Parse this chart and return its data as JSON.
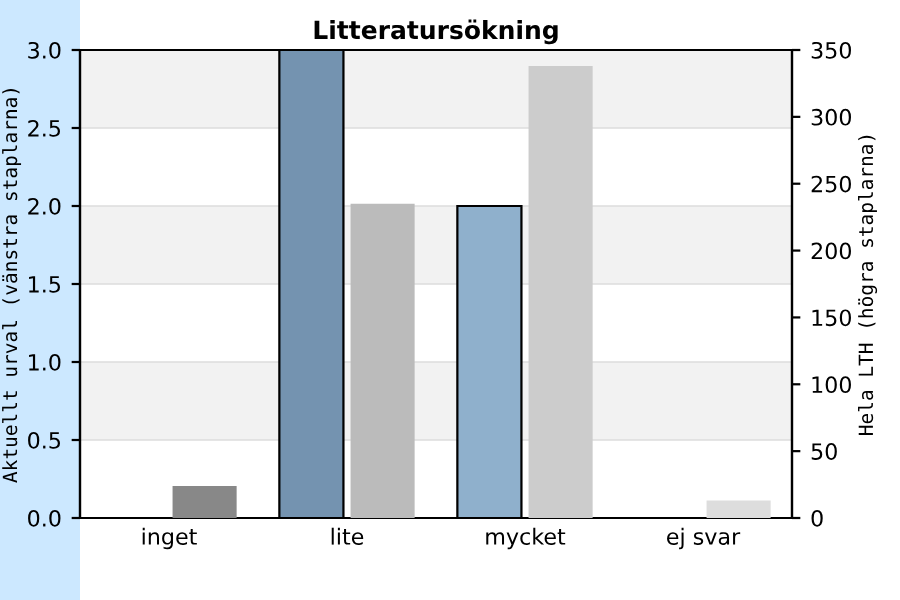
{
  "chart_data": {
    "type": "bar",
    "title": "Litteratursökning",
    "ylabel": "Aktuellt urval (vänstra staplarna)",
    "y2label": "Hela LTH (högra staplarna)",
    "categories": [
      "inget",
      "lite",
      "mycket",
      "ej svar"
    ],
    "series": [
      {
        "colors": [
          "#7493b0",
          "#7493b0",
          "#8fb0cc",
          "#8fb0cc"
        ],
        "values": [
          0,
          3.0,
          2.0,
          0
        ]
      },
      {
        "colors": [
          "#888888",
          "#bbbbbb",
          "#cccccc",
          "#dddddd"
        ],
        "values": [
          24,
          235,
          338,
          13
        ],
        "axis": "y2"
      }
    ],
    "ylim": [
      0,
      3.0
    ],
    "yticks": [
      {
        "value": 0,
        "label": "0.0"
      },
      {
        "value": 0.5,
        "label": "0.5"
      },
      {
        "value": 1,
        "label": "1.0"
      },
      {
        "value": 1.5,
        "label": "1.5"
      },
      {
        "value": 2,
        "label": "2.0"
      },
      {
        "value": 2.5,
        "label": "2.5"
      },
      {
        "value": 3,
        "label": "3.0"
      }
    ],
    "y2lim": [
      0,
      350
    ],
    "y2ticks": [
      0,
      50,
      100,
      150,
      200,
      250,
      300,
      350
    ],
    "grid": "y"
  }
}
